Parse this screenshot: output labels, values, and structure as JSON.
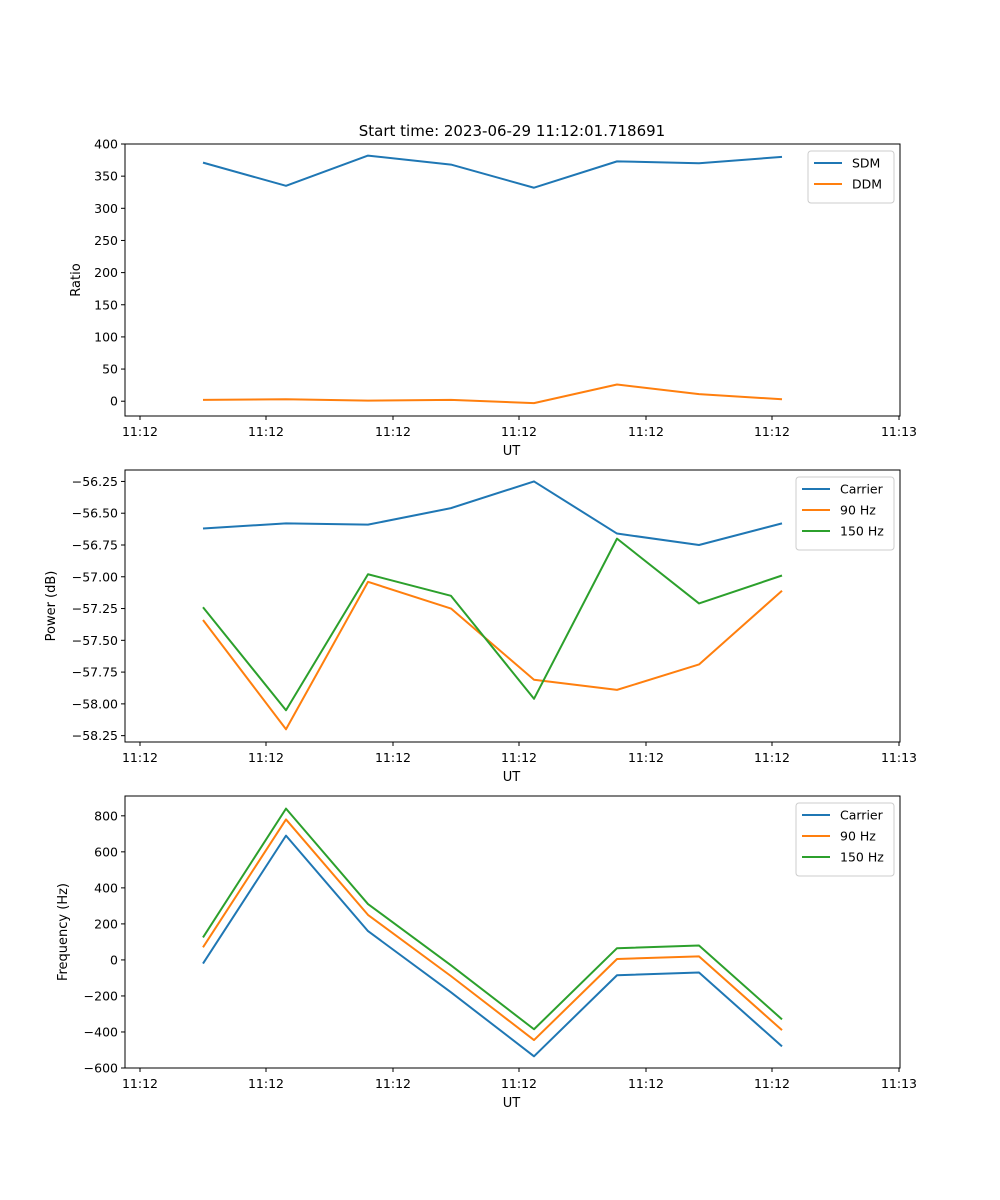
{
  "figure": {
    "title": "Start time: 2023-06-29 11:12:01.718691"
  },
  "chart_data": [
    {
      "type": "line",
      "xlabel": "UT",
      "ylabel": "Ratio",
      "xtick_labels": [
        "11:12",
        "11:12",
        "11:12",
        "11:12",
        "11:12",
        "11:12",
        "11:13"
      ],
      "yticks": [
        0,
        50,
        100,
        150,
        200,
        250,
        300,
        350,
        400
      ],
      "ytick_labels": [
        "0",
        "50",
        "100",
        "150",
        "200",
        "250",
        "300",
        "350",
        "400"
      ],
      "ylim": [
        -23,
        400
      ],
      "legend_position": "top-right",
      "series": [
        {
          "name": "SDM",
          "color": "#1f77b4",
          "values": [
            371,
            335,
            382,
            368,
            332,
            373,
            370,
            380
          ]
        },
        {
          "name": "DDM",
          "color": "#ff7f0e",
          "values": [
            2,
            3,
            1,
            2,
            -3,
            26,
            11,
            3
          ]
        }
      ]
    },
    {
      "type": "line",
      "xlabel": "UT",
      "ylabel": "Power (dB)",
      "xtick_labels": [
        "11:12",
        "11:12",
        "11:12",
        "11:12",
        "11:12",
        "11:12",
        "11:13"
      ],
      "yticks": [
        -58.25,
        -58.0,
        -57.75,
        -57.5,
        -57.25,
        -57.0,
        -56.75,
        -56.5,
        -56.25
      ],
      "ytick_labels": [
        "−58.25",
        "−58.00",
        "−57.75",
        "−57.50",
        "−57.25",
        "−57.00",
        "−56.75",
        "−56.50",
        "−56.25"
      ],
      "ylim": [
        -58.3,
        -56.16
      ],
      "legend_position": "top-right",
      "series": [
        {
          "name": "Carrier",
          "color": "#1f77b4",
          "values": [
            -56.62,
            -56.58,
            -56.59,
            -56.46,
            -56.25,
            -56.66,
            -56.75,
            -56.58
          ]
        },
        {
          "name": "90 Hz",
          "color": "#ff7f0e",
          "values": [
            -57.34,
            -58.2,
            -57.04,
            -57.25,
            -57.81,
            -57.89,
            -57.69,
            -57.11
          ]
        },
        {
          "name": "150 Hz",
          "color": "#2ca02c",
          "values": [
            -57.24,
            -58.05,
            -56.98,
            -57.15,
            -57.96,
            -56.7,
            -57.21,
            -56.99
          ]
        }
      ]
    },
    {
      "type": "line",
      "xlabel": "UT",
      "ylabel": "Frequency (Hz)",
      "xtick_labels": [
        "11:12",
        "11:12",
        "11:12",
        "11:12",
        "11:12",
        "11:12",
        "11:13"
      ],
      "yticks": [
        -600,
        -400,
        -200,
        0,
        200,
        400,
        600,
        800
      ],
      "ytick_labels": [
        "−600",
        "−400",
        "−200",
        "0",
        "200",
        "400",
        "600",
        "800"
      ],
      "ylim": [
        -600,
        910
      ],
      "legend_position": "top-right",
      "series": [
        {
          "name": "Carrier",
          "color": "#1f77b4",
          "values": [
            -20,
            690,
            160,
            -180,
            -535,
            -85,
            -70,
            -480
          ]
        },
        {
          "name": "90 Hz",
          "color": "#ff7f0e",
          "values": [
            70,
            780,
            250,
            -90,
            -445,
            5,
            20,
            -390
          ]
        },
        {
          "name": "150 Hz",
          "color": "#2ca02c",
          "values": [
            125,
            840,
            310,
            -30,
            -385,
            65,
            80,
            -330
          ]
        }
      ]
    }
  ]
}
